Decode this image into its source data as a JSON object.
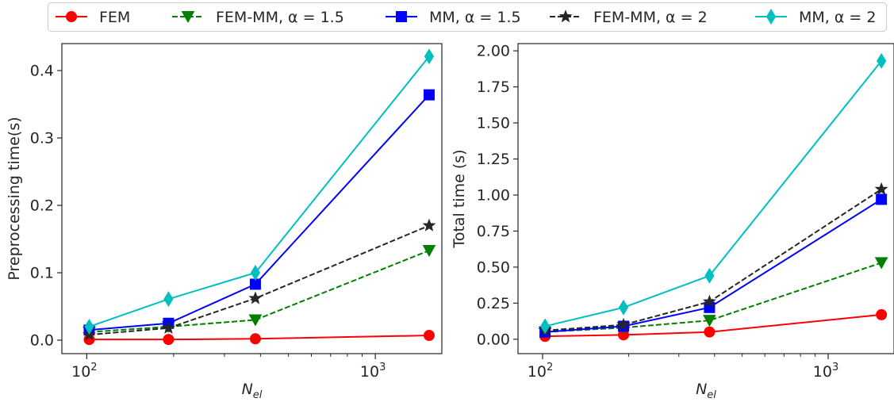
{
  "legend": [
    {
      "label": "FEM",
      "color": "#ff0000",
      "marker": "circle",
      "dash": "solid"
    },
    {
      "label": "FEM-MM, α = 1.5",
      "color": "#008000",
      "marker": "triangle-down",
      "dash": "dashed"
    },
    {
      "label": "MM, α = 1.5",
      "color": "#0000ff",
      "marker": "square",
      "dash": "solid"
    },
    {
      "label": "FEM-MM, α = 2",
      "color": "#262626",
      "marker": "star",
      "dash": "dashed"
    },
    {
      "label": "MM, α = 2",
      "color": "#00bfbf",
      "marker": "thin-diamond",
      "dash": "solid"
    }
  ],
  "chart_data": [
    {
      "type": "line",
      "xlabel_base": "N",
      "xlabel_sub": "el",
      "ylabel": "Preprocessing time(s)",
      "xscale": "log",
      "xlim": [
        82,
        1700
      ],
      "ylim": [
        -0.02,
        0.44
      ],
      "yticks": [
        0.0,
        0.1,
        0.2,
        0.3,
        0.4
      ],
      "ytick_labels": [
        "0.0",
        "0.1",
        "0.2",
        "0.3",
        "0.4"
      ],
      "xticks": [
        100,
        1000
      ],
      "xtick_labels": [
        {
          "base": "10",
          "exp": "2"
        },
        {
          "base": "10",
          "exp": "3"
        }
      ],
      "x": [
        102,
        192,
        384,
        1536
      ],
      "series": [
        {
          "name": "FEM",
          "values": [
            0.001,
            0.001,
            0.002,
            0.007
          ]
        },
        {
          "name": "FEM-MM, α = 1.5",
          "values": [
            0.012,
            0.02,
            0.03,
            0.133
          ]
        },
        {
          "name": "MM, α = 1.5",
          "values": [
            0.015,
            0.025,
            0.083,
            0.364
          ]
        },
        {
          "name": "FEM-MM, α = 2",
          "values": [
            0.008,
            0.018,
            0.062,
            0.17
          ]
        },
        {
          "name": "MM, α = 2",
          "values": [
            0.02,
            0.061,
            0.1,
            0.421
          ]
        }
      ]
    },
    {
      "type": "line",
      "xlabel_base": "N",
      "xlabel_sub": "el",
      "ylabel": "Total time (s)",
      "xscale": "log",
      "xlim": [
        82,
        1700
      ],
      "ylim": [
        -0.1,
        2.05
      ],
      "yticks": [
        0.0,
        0.25,
        0.5,
        0.75,
        1.0,
        1.25,
        1.5,
        1.75,
        2.0
      ],
      "ytick_labels": [
        "0.00",
        "0.25",
        "0.50",
        "0.75",
        "1.00",
        "1.25",
        "1.50",
        "1.75",
        "2.00"
      ],
      "xticks": [
        100,
        1000
      ],
      "xtick_labels": [
        {
          "base": "10",
          "exp": "2"
        },
        {
          "base": "10",
          "exp": "3"
        }
      ],
      "x": [
        102,
        192,
        384,
        1536
      ],
      "series": [
        {
          "name": "FEM",
          "values": [
            0.02,
            0.03,
            0.05,
            0.17
          ]
        },
        {
          "name": "FEM-MM, α = 1.5",
          "values": [
            0.05,
            0.08,
            0.13,
            0.53
          ]
        },
        {
          "name": "MM, α = 1.5",
          "values": [
            0.05,
            0.09,
            0.22,
            0.97
          ]
        },
        {
          "name": "FEM-MM, α = 2",
          "values": [
            0.06,
            0.1,
            0.26,
            1.04
          ]
        },
        {
          "name": "MM, α = 2",
          "values": [
            0.09,
            0.22,
            0.44,
            1.93
          ]
        }
      ]
    }
  ]
}
